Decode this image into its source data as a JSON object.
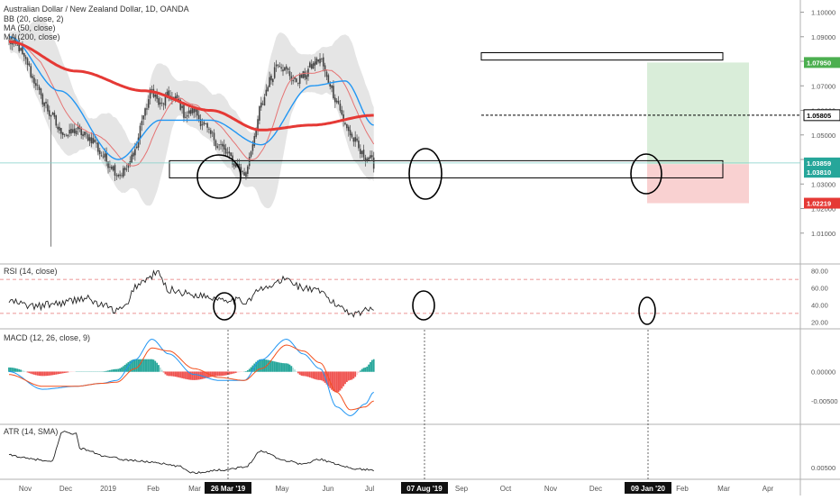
{
  "header": {
    "title": "Australian Dollar / New Zealand Dollar, 1D, OANDA",
    "indicators": [
      "BB (20, close, 2)",
      "MA (50, close)",
      "MA (200, close)"
    ]
  },
  "panes": {
    "rsi_label": "RSI (14, close)",
    "macd_label": "MACD (12, 26, close, 9)",
    "atr_label": "ATR (14, SMA)"
  },
  "colors": {
    "candle_up": "#26a69a",
    "candle_down": "#ef5350",
    "bb": "#e0e0e0",
    "ma50": "#2196f3",
    "ma200": "#e53935",
    "bb_basis": "#e57373",
    "tp_zone": "#cfe9cf",
    "sl_zone": "#f8cccc",
    "macd_line": "#2196f3",
    "signal_line": "#f4511e",
    "rsi_line": "#222222",
    "atr_line": "#222222"
  },
  "chart_data": [
    {
      "type": "candlestick",
      "title": "Australian Dollar / New Zealand Dollar, 1D, OANDA",
      "x_ticks": [
        "Nov",
        "Dec",
        "2019",
        "Feb",
        "Mar",
        "26 Mar '19",
        "May",
        "Jun",
        "Jul",
        "07 Aug '19",
        "Sep",
        "Oct",
        "Nov",
        "Dec",
        "09 Jan '20",
        "Feb",
        "Mar",
        "Apr"
      ],
      "highlighted_dates": [
        "26 Mar '19",
        "07 Aug '19",
        "09 Jan '20"
      ],
      "y_ticks": [
        "1.10000",
        "1.09000",
        "1.08000",
        "1.07000",
        "1.06000",
        "1.05000",
        "1.04000",
        "1.03000",
        "1.02000",
        "1.01000"
      ],
      "ylim": [
        1.0,
        1.1035
      ],
      "price_labels": [
        {
          "text": "1.07950",
          "value": 1.0795,
          "color": "#4caf50"
        },
        {
          "text": "1.05805",
          "value": 1.05805,
          "color": "#000000"
        },
        {
          "text": "1.03859",
          "value": 1.03859,
          "color": "#26a69a"
        },
        {
          "text": "1.03810",
          "value": 1.0381,
          "color": "#26a69a"
        },
        {
          "text": "1.02219",
          "value": 1.02219,
          "color": "#e53935"
        }
      ],
      "close_series_keypoints": [
        [
          0,
          1.088
        ],
        [
          5,
          1.086
        ],
        [
          10,
          1.08
        ],
        [
          15,
          1.072
        ],
        [
          20,
          1.064
        ],
        [
          25,
          1.058
        ],
        [
          30,
          1.052
        ],
        [
          35,
          1.05
        ],
        [
          40,
          1.052
        ],
        [
          45,
          1.05
        ],
        [
          50,
          1.048
        ],
        [
          55,
          1.042
        ],
        [
          60,
          1.038
        ],
        [
          65,
          1.034
        ],
        [
          70,
          1.036
        ],
        [
          75,
          1.044
        ],
        [
          80,
          1.058
        ],
        [
          85,
          1.068
        ],
        [
          90,
          1.062
        ],
        [
          95,
          1.066
        ],
        [
          100,
          1.064
        ],
        [
          105,
          1.058
        ],
        [
          110,
          1.06
        ],
        [
          115,
          1.055
        ],
        [
          120,
          1.05
        ],
        [
          125,
          1.046
        ],
        [
          130,
          1.042
        ],
        [
          135,
          1.038
        ],
        [
          140,
          1.034
        ],
        [
          145,
          1.046
        ],
        [
          150,
          1.062
        ],
        [
          155,
          1.072
        ],
        [
          160,
          1.08
        ],
        [
          165,
          1.076
        ],
        [
          170,
          1.072
        ],
        [
          175,
          1.074
        ],
        [
          180,
          1.078
        ],
        [
          185,
          1.081
        ],
        [
          190,
          1.072
        ],
        [
          195,
          1.064
        ],
        [
          200,
          1.054
        ],
        [
          205,
          1.048
        ],
        [
          210,
          1.042
        ],
        [
          215,
          1.04
        ],
        [
          217,
          1.0381
        ]
      ],
      "ma200_keypoints": [
        [
          0,
          1.088
        ],
        [
          40,
          1.076
        ],
        [
          80,
          1.068
        ],
        [
          120,
          1.06
        ],
        [
          150,
          1.052
        ],
        [
          180,
          1.054
        ],
        [
          217,
          1.058
        ]
      ],
      "ma50_keypoints": [
        [
          0,
          1.09
        ],
        [
          30,
          1.068
        ],
        [
          65,
          1.04
        ],
        [
          90,
          1.056
        ],
        [
          120,
          1.056
        ],
        [
          150,
          1.046
        ],
        [
          180,
          1.07
        ],
        [
          200,
          1.072
        ],
        [
          217,
          1.054
        ]
      ],
      "support_zone": {
        "top": 1.0395,
        "bottom": 1.0325
      },
      "resistance_zone": {
        "top": 1.0835,
        "bottom": 1.0805
      },
      "position": {
        "entry": 1.0381,
        "take_profit": 1.0795,
        "stop_loss": 1.02219
      }
    },
    {
      "type": "line",
      "title": "RSI (14, close)",
      "y_ticks": [
        "80.00",
        "60.00",
        "40.00",
        "20.00"
      ],
      "ylim": [
        15,
        85
      ],
      "levels": [
        70,
        30
      ],
      "keypoints": [
        [
          0,
          44
        ],
        [
          15,
          38
        ],
        [
          30,
          42
        ],
        [
          45,
          48
        ],
        [
          55,
          40
        ],
        [
          64,
          33
        ],
        [
          70,
          38
        ],
        [
          75,
          62
        ],
        [
          82,
          70
        ],
        [
          88,
          78
        ],
        [
          95,
          58
        ],
        [
          110,
          52
        ],
        [
          125,
          48
        ],
        [
          140,
          44
        ],
        [
          150,
          58
        ],
        [
          165,
          70
        ],
        [
          175,
          60
        ],
        [
          185,
          55
        ],
        [
          195,
          40
        ],
        [
          205,
          30
        ],
        [
          212,
          33
        ],
        [
          217,
          38
        ]
      ]
    },
    {
      "type": "bar+line",
      "title": "MACD (12, 26, close, 9)",
      "y_ticks": [
        "0.00000",
        "-0.00500"
      ],
      "ylim": [
        -0.0085,
        0.0068
      ],
      "macd_keypoints": [
        [
          0,
          0.0
        ],
        [
          20,
          -0.003
        ],
        [
          40,
          -0.0025
        ],
        [
          55,
          -0.002
        ],
        [
          64,
          -0.0015
        ],
        [
          75,
          0.002
        ],
        [
          85,
          0.0055
        ],
        [
          95,
          0.003
        ],
        [
          110,
          -0.0005
        ],
        [
          125,
          -0.0015
        ],
        [
          140,
          -0.0015
        ],
        [
          150,
          0.002
        ],
        [
          165,
          0.0055
        ],
        [
          175,
          0.003
        ],
        [
          185,
          0.0005
        ],
        [
          195,
          -0.006
        ],
        [
          203,
          -0.0075
        ],
        [
          212,
          -0.0055
        ],
        [
          217,
          -0.0035
        ]
      ],
      "signal_keypoints": [
        [
          0,
          -0.0005
        ],
        [
          20,
          -0.0025
        ],
        [
          40,
          -0.0025
        ],
        [
          55,
          -0.002
        ],
        [
          64,
          -0.0018
        ],
        [
          75,
          0.0005
        ],
        [
          85,
          0.004
        ],
        [
          95,
          0.0035
        ],
        [
          110,
          0.0005
        ],
        [
          125,
          -0.001
        ],
        [
          140,
          -0.0015
        ],
        [
          150,
          0.0005
        ],
        [
          165,
          0.0045
        ],
        [
          175,
          0.0035
        ],
        [
          185,
          0.0015
        ],
        [
          195,
          -0.0035
        ],
        [
          203,
          -0.0065
        ],
        [
          212,
          -0.006
        ],
        [
          217,
          -0.005
        ]
      ]
    },
    {
      "type": "line",
      "title": "ATR (14, SMA)",
      "y_ticks": [
        "0.00500"
      ],
      "ylim": [
        0.0035,
        0.011
      ],
      "keypoints": [
        [
          0,
          0.0068
        ],
        [
          15,
          0.0062
        ],
        [
          25,
          0.0058
        ],
        [
          32,
          0.0103
        ],
        [
          40,
          0.01
        ],
        [
          42,
          0.0078
        ],
        [
          60,
          0.0065
        ],
        [
          70,
          0.0061
        ],
        [
          85,
          0.0058
        ],
        [
          100,
          0.0052
        ],
        [
          110,
          0.0042
        ],
        [
          125,
          0.0046
        ],
        [
          140,
          0.005
        ],
        [
          150,
          0.0074
        ],
        [
          165,
          0.006
        ],
        [
          175,
          0.0055
        ],
        [
          185,
          0.0062
        ],
        [
          195,
          0.0055
        ],
        [
          205,
          0.0048
        ],
        [
          217,
          0.0046
        ]
      ]
    }
  ]
}
